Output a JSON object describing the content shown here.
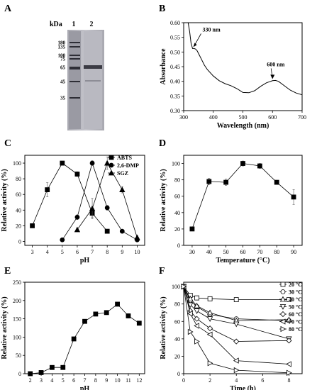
{
  "panels": {
    "A": "A",
    "B": "B",
    "C": "C",
    "D": "D",
    "E": "E",
    "F": "F"
  },
  "gel": {
    "unit_label": "kDa",
    "lane_labels": [
      "1",
      "2"
    ],
    "markers": [
      "180",
      "135",
      "100",
      "75",
      "65",
      "45",
      "35"
    ]
  },
  "chart_data": [
    {
      "panel": "B",
      "type": "line",
      "xlabel": "Wavelength (nm)",
      "ylabel": "Absorbance",
      "xlim": [
        300,
        700
      ],
      "ylim": [
        0.3,
        0.6
      ],
      "xticks": [
        300,
        400,
        500,
        600,
        700
      ],
      "yticks": [
        0.3,
        0.35,
        0.4,
        0.45,
        0.5,
        0.55,
        0.6
      ],
      "x": [
        315,
        320,
        325,
        330,
        335,
        340,
        345,
        350,
        360,
        370,
        380,
        400,
        420,
        440,
        460,
        480,
        500,
        520,
        540,
        560,
        580,
        600,
        610,
        620,
        640,
        660,
        680,
        700
      ],
      "y": [
        0.6,
        0.57,
        0.53,
        0.512,
        0.512,
        0.51,
        0.505,
        0.495,
        0.475,
        0.455,
        0.44,
        0.418,
        0.402,
        0.392,
        0.385,
        0.375,
        0.362,
        0.361,
        0.368,
        0.383,
        0.395,
        0.402,
        0.403,
        0.4,
        0.385,
        0.37,
        0.36,
        0.354
      ],
      "annotations": [
        {
          "text": "330 nm",
          "x": 330,
          "y": 0.512
        },
        {
          "text": "600 nm",
          "x": 600,
          "y": 0.403
        }
      ],
      "grid": false
    },
    {
      "panel": "C",
      "type": "line",
      "xlabel": "pH",
      "ylabel": "Relative activity (%)",
      "xlim": [
        2.5,
        10.5
      ],
      "ylim": [
        -5,
        110
      ],
      "xticks": [
        3,
        4,
        5,
        6,
        7,
        8,
        9,
        10
      ],
      "yticks": [
        0,
        20,
        40,
        60,
        80,
        100
      ],
      "legend_position": "top-right",
      "series": [
        {
          "name": "ABTS",
          "marker": "square",
          "x": [
            3,
            4,
            5,
            6,
            7,
            8
          ],
          "y": [
            20,
            66,
            100,
            86,
            36,
            13
          ],
          "err": [
            2,
            9,
            0,
            3,
            5,
            2
          ]
        },
        {
          "name": "2,6-DMP",
          "marker": "circle",
          "x": [
            5,
            6,
            7,
            8,
            9,
            10
          ],
          "y": [
            2,
            31,
            100,
            43,
            13,
            2
          ],
          "err": [
            1,
            3,
            3,
            3,
            2,
            1
          ]
        },
        {
          "name": "SGZ",
          "marker": "triangle",
          "x": [
            6,
            7,
            8,
            9,
            10
          ],
          "y": [
            15,
            42,
            100,
            66,
            5
          ],
          "err": [
            2,
            13,
            8,
            4,
            2
          ]
        }
      ],
      "grid": false
    },
    {
      "panel": "D",
      "type": "line",
      "xlabel": "Temperature (°C)",
      "ylabel": "Relative activity (%)",
      "xlim": [
        25,
        95
      ],
      "ylim": [
        0,
        110
      ],
      "xticks": [
        30,
        40,
        50,
        60,
        70,
        80,
        90
      ],
      "yticks": [
        0,
        20,
        40,
        60,
        80,
        100
      ],
      "series": [
        {
          "marker": "square",
          "x": [
            30,
            40,
            50,
            60,
            70,
            80,
            90
          ],
          "y": [
            20,
            78,
            77,
            100,
            97,
            77,
            59
          ],
          "err": [
            1,
            4,
            4,
            3,
            3,
            2,
            9
          ]
        }
      ],
      "grid": false
    },
    {
      "panel": "E",
      "type": "line",
      "xlabel": "pH",
      "ylabel": "Relative activity (%)",
      "xlim": [
        1.5,
        12.5
      ],
      "ylim": [
        0,
        250
      ],
      "xticks": [
        2,
        3,
        4,
        5,
        6,
        7,
        8,
        9,
        10,
        11,
        12
      ],
      "yticks": [
        0,
        50,
        100,
        150,
        200,
        250
      ],
      "series": [
        {
          "marker": "square",
          "x": [
            2,
            3,
            4,
            5,
            6,
            7,
            8,
            9,
            10,
            11,
            12
          ],
          "y": [
            0,
            3,
            17,
            17,
            95,
            143,
            163,
            167,
            190,
            158,
            138
          ],
          "err": [
            1,
            1,
            2,
            2,
            4,
            4,
            4,
            4,
            5,
            6,
            5
          ]
        }
      ],
      "grid": false
    },
    {
      "panel": "F",
      "type": "line",
      "xlabel": "Time (h)",
      "ylabel": "Relative activity (%)",
      "xlim": [
        0,
        9
      ],
      "ylim": [
        0,
        105
      ],
      "xticks": [
        0,
        2,
        4,
        6,
        8
      ],
      "yticks": [
        0,
        20,
        40,
        60,
        80,
        100
      ],
      "legend_position": "right",
      "series": [
        {
          "name": "20 °C",
          "marker": "square-open",
          "x": [
            0,
            0.5,
            1,
            2,
            4,
            8
          ],
          "y": [
            100,
            90,
            87,
            86,
            85,
            85
          ]
        },
        {
          "name": "30 °C",
          "marker": "circle-open",
          "x": [
            0,
            0.5,
            1,
            2,
            4,
            8
          ],
          "y": [
            100,
            84,
            77,
            68,
            63,
            61
          ]
        },
        {
          "name": "40 °C",
          "marker": "triangle-open",
          "x": [
            0,
            0.5,
            1,
            2,
            4,
            8
          ],
          "y": [
            100,
            86,
            78,
            70,
            61,
            62
          ]
        },
        {
          "name": "50 °C",
          "marker": "triangle-down-open",
          "x": [
            0,
            0.5,
            1,
            2,
            4,
            8
          ],
          "y": [
            100,
            79,
            72,
            63,
            57,
            40
          ]
        },
        {
          "name": "60 °C",
          "marker": "diamond-open",
          "x": [
            0,
            0.5,
            1,
            2,
            4,
            8
          ],
          "y": [
            100,
            72,
            63,
            52,
            37,
            38
          ]
        },
        {
          "name": "70 °C",
          "marker": "triangle-left-open",
          "x": [
            0,
            0.5,
            1,
            2,
            4,
            8
          ],
          "y": [
            100,
            69,
            55,
            45,
            15,
            11
          ]
        },
        {
          "name": "80 °C",
          "marker": "triangle-right-open",
          "x": [
            0,
            0.5,
            1,
            2,
            4,
            8
          ],
          "y": [
            100,
            48,
            37,
            12,
            4,
            1
          ]
        }
      ],
      "grid": false
    }
  ]
}
